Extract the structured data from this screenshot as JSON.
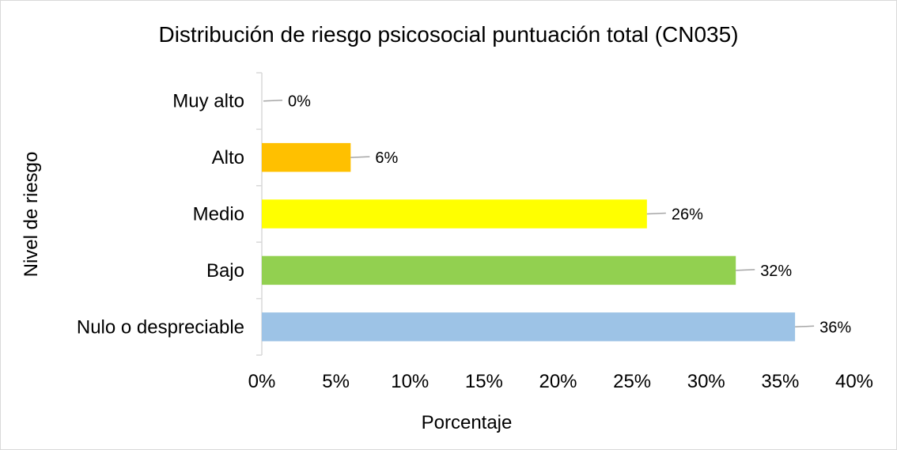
{
  "chart_data": {
    "type": "bar",
    "orientation": "horizontal",
    "title": "Distribución de riesgo psicosocial puntuación total (CN035)",
    "xlabel": "Porcentaje",
    "ylabel": "Nivel de riesgo",
    "categories": [
      "Muy alto",
      "Alto",
      "Medio",
      "Bajo",
      "Nulo o despreciable"
    ],
    "values": [
      0,
      6,
      26,
      32,
      36
    ],
    "data_labels": [
      "0%",
      "6%",
      "26%",
      "32%",
      "36%"
    ],
    "colors": [
      "#a6a6a6",
      "#ffc000",
      "#ffff00",
      "#92d050",
      "#9dc3e6"
    ],
    "xlim": [
      0,
      40
    ],
    "x_ticks": [
      0,
      5,
      10,
      15,
      20,
      25,
      30,
      35,
      40
    ],
    "x_tick_labels": [
      "0%",
      "5%",
      "10%",
      "15%",
      "20%",
      "25%",
      "30%",
      "35%",
      "40%"
    ],
    "grid": false,
    "legend": "none"
  }
}
